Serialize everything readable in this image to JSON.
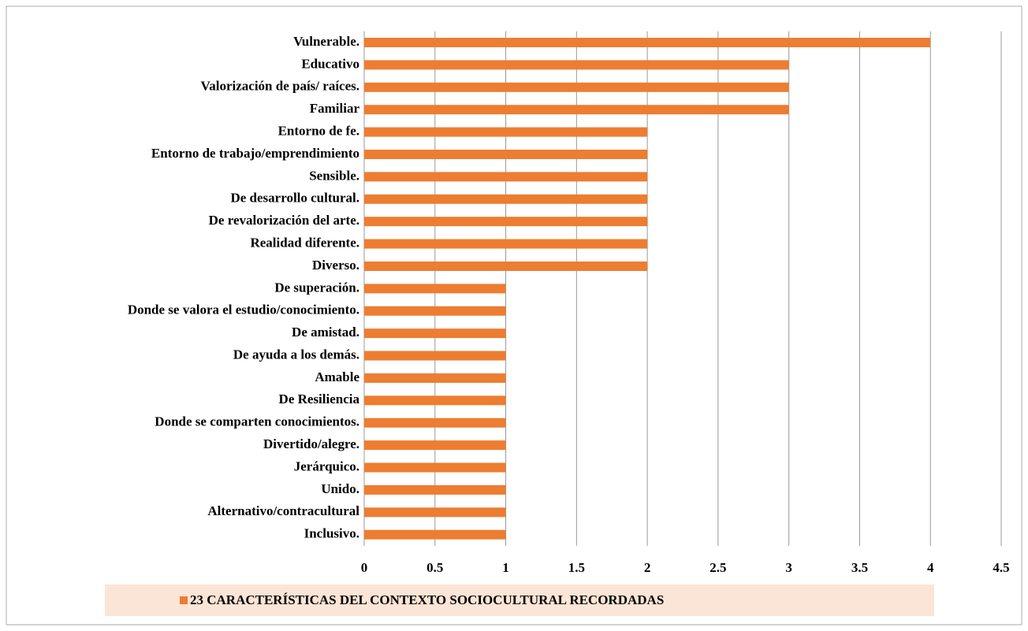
{
  "chart_data": {
    "type": "barh",
    "categories": [
      "Vulnerable.",
      "Educativo",
      "Valorización de país/ raíces.",
      "Familiar",
      "Entorno de fe.",
      "Entorno de trabajo/emprendimiento",
      "Sensible.",
      "De desarrollo cultural.",
      "De revalorización del arte.",
      "Realidad diferente.",
      "Diverso.",
      "De superación.",
      "Donde se valora el estudio/conocimiento.",
      "De amistad.",
      "De ayuda a los demás.",
      "Amable",
      "De Resiliencia",
      "Donde se comparten conocimientos.",
      "Divertido/alegre.",
      "Jerárquico.",
      "Unido.",
      "Alternativo/contracultural",
      "Inclusivo."
    ],
    "series": [
      {
        "name": "23 CARACTERÍSTICAS DEL CONTEXTO SOCIOCULTURAL RECORDADAS",
        "color": "#ED7D31",
        "values": [
          4,
          3,
          3,
          3,
          2,
          2,
          2,
          2,
          2,
          2,
          2,
          1,
          1,
          1,
          1,
          1,
          1,
          1,
          1,
          1,
          1,
          1,
          1
        ]
      }
    ],
    "xlim": [
      0,
      4.5
    ],
    "xticks": [
      0,
      0.5,
      1,
      1.5,
      2,
      2.5,
      3,
      3.5,
      4,
      4.5
    ],
    "grid": true,
    "legend": "bottom"
  }
}
